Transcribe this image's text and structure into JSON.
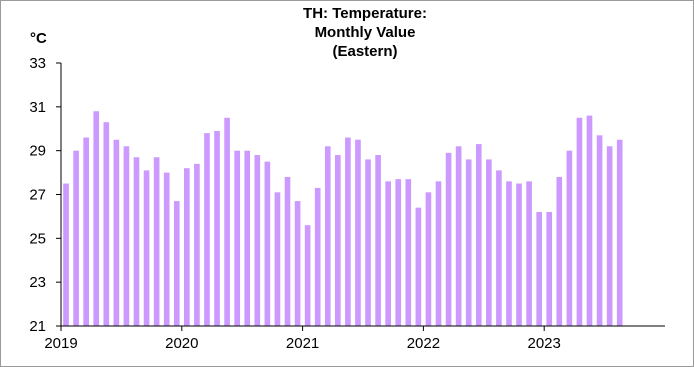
{
  "chart_data": {
    "type": "bar",
    "title": "TH: Temperature:\nMonthly Value\n(Eastern)",
    "ylabel": "°C",
    "xlabel": "",
    "ylim": [
      21,
      33
    ],
    "yticks": [
      21,
      23,
      25,
      27,
      29,
      31,
      33
    ],
    "x_tick_labels": [
      "2019",
      "2020",
      "2021",
      "2022",
      "2023"
    ],
    "bar_color": "#cc99ff",
    "categories": [
      "2019-01",
      "2019-02",
      "2019-03",
      "2019-04",
      "2019-05",
      "2019-06",
      "2019-07",
      "2019-08",
      "2019-09",
      "2019-10",
      "2019-11",
      "2019-12",
      "2020-01",
      "2020-02",
      "2020-03",
      "2020-04",
      "2020-05",
      "2020-06",
      "2020-07",
      "2020-08",
      "2020-09",
      "2020-10",
      "2020-11",
      "2020-12",
      "2021-01",
      "2021-02",
      "2021-03",
      "2021-04",
      "2021-05",
      "2021-06",
      "2021-07",
      "2021-08",
      "2021-09",
      "2021-10",
      "2021-11",
      "2021-12",
      "2022-01",
      "2022-02",
      "2022-03",
      "2022-04",
      "2022-05",
      "2022-06",
      "2022-07",
      "2022-08",
      "2022-09",
      "2022-10",
      "2022-11",
      "2022-12",
      "2023-01",
      "2023-02",
      "2023-03",
      "2023-04",
      "2023-05",
      "2023-06",
      "2023-07",
      "2023-08",
      "2023-09",
      "2023-10",
      "2023-11",
      "2023-12"
    ],
    "values": [
      27.5,
      29.0,
      29.6,
      30.8,
      30.3,
      29.5,
      29.2,
      28.7,
      28.1,
      28.7,
      28.0,
      26.7,
      28.2,
      28.4,
      29.8,
      29.9,
      30.5,
      29.0,
      29.0,
      28.8,
      28.5,
      27.1,
      27.8,
      26.7,
      25.6,
      27.3,
      29.2,
      28.8,
      29.6,
      29.5,
      28.6,
      28.8,
      27.6,
      27.7,
      27.7,
      26.4,
      27.1,
      27.6,
      28.9,
      29.2,
      28.6,
      29.3,
      28.6,
      28.1,
      27.6,
      27.5,
      27.6,
      26.2,
      26.2,
      27.8,
      29.0,
      30.5,
      30.6,
      29.7,
      29.2,
      29.5,
      null,
      null,
      null,
      null
    ]
  }
}
